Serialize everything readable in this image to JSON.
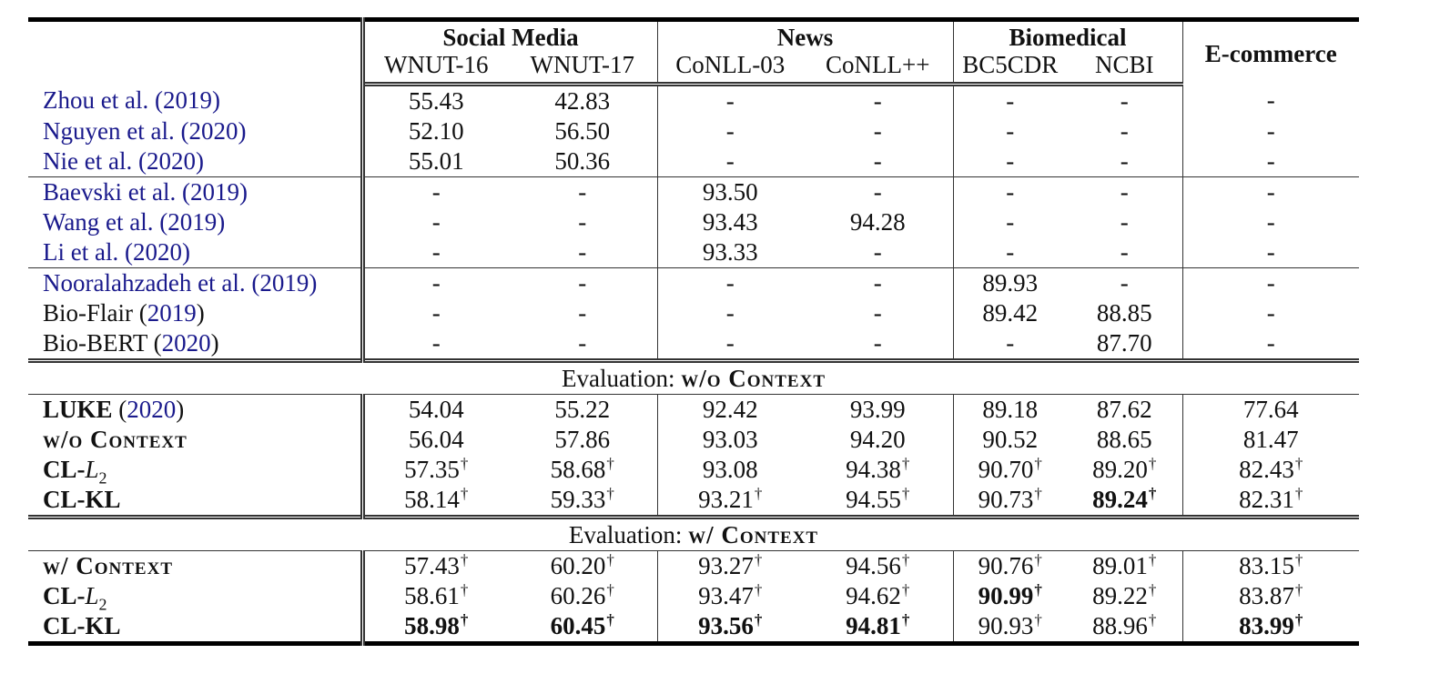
{
  "table": {
    "groups": [
      {
        "label": "Social Media",
        "columns": [
          "WNUT-16",
          "WNUT-17"
        ]
      },
      {
        "label": "News",
        "columns": [
          "CoNLL-03",
          "CoNLL++"
        ]
      },
      {
        "label": "Biomedical",
        "columns": [
          "BC5CDR",
          "NCBI"
        ]
      },
      {
        "label": "E-commerce",
        "columns": []
      }
    ],
    "baselines": [
      {
        "name": "Zhou et al.",
        "year": "2019",
        "cells": [
          "55.43",
          "42.83",
          "-",
          "-",
          "-",
          "-",
          "-"
        ]
      },
      {
        "name": "Nguyen et al.",
        "year": "2020",
        "cells": [
          "52.10",
          "56.50",
          "-",
          "-",
          "-",
          "-",
          "-"
        ]
      },
      {
        "name": "Nie et al.",
        "year": "2020",
        "cells": [
          "55.01",
          "50.36",
          "-",
          "-",
          "-",
          "-",
          "-"
        ]
      },
      {
        "name": "Baevski et al.",
        "year": "2019",
        "cells": [
          "-",
          "-",
          "93.50",
          "-",
          "-",
          "-",
          "-"
        ]
      },
      {
        "name": "Wang et al.",
        "year": "2019",
        "cells": [
          "-",
          "-",
          "93.43",
          "94.28",
          "-",
          "-",
          "-"
        ]
      },
      {
        "name": "Li et al.",
        "year": "2020",
        "cells": [
          "-",
          "-",
          "93.33",
          "-",
          "-",
          "-",
          "-"
        ]
      },
      {
        "name": "Nooralahzadeh et al.",
        "year": "2019",
        "cells": [
          "-",
          "-",
          "-",
          "-",
          "89.93",
          "-",
          "-"
        ]
      },
      {
        "name": "Bio-Flair",
        "year": "2019",
        "cells": [
          "-",
          "-",
          "-",
          "-",
          "89.42",
          "88.85",
          "-"
        ]
      },
      {
        "name": "Bio-BERT",
        "year": "2020",
        "cells": [
          "-",
          "-",
          "-",
          "-",
          "-",
          "87.70",
          "-"
        ]
      }
    ],
    "eval_wo": {
      "label_prefix": "Evaluation: ",
      "label_sc": "w/o Context",
      "rows": [
        {
          "name": "LUKE",
          "year": "2020",
          "cells": [
            "54.04",
            "55.22",
            "92.42",
            "93.99",
            "89.18",
            "87.62",
            "77.64"
          ]
        },
        {
          "name": "w/o Context",
          "cells": [
            "56.04",
            "57.86",
            "93.03",
            "94.20",
            "90.52",
            "88.65",
            "81.47"
          ]
        },
        {
          "name": "CL-",
          "math": "L",
          "math_sub": "2",
          "cells": [
            "57.35†",
            "58.68†",
            "93.08",
            "94.38†",
            "90.70†",
            "89.20†",
            "82.43†"
          ]
        },
        {
          "name": "CL-KL",
          "cells": [
            "58.14†",
            "59.33†",
            "93.21†",
            "94.55†",
            "90.73†",
            "89.24†",
            "82.31†"
          ]
        }
      ]
    },
    "eval_w": {
      "label_prefix": "Evaluation: ",
      "label_sc": "w/ Context",
      "rows": [
        {
          "name": "w/ Context",
          "cells": [
            "57.43†",
            "60.20†",
            "93.27†",
            "94.56†",
            "90.76†",
            "89.01†",
            "83.15†"
          ]
        },
        {
          "name": "CL-",
          "math": "L",
          "math_sub": "2",
          "cells": [
            "58.61†",
            "60.26†",
            "93.47†",
            "94.62†",
            "90.99†",
            "89.22†",
            "83.87†"
          ]
        },
        {
          "name": "CL-KL",
          "cells": [
            "58.98†",
            "60.45†",
            "93.56†",
            "94.81†",
            "90.93†",
            "88.96†",
            "83.99†"
          ]
        }
      ]
    },
    "bold_cells": [
      "eval_wo.3.5",
      "eval_w.1.4",
      "eval_w.2.0",
      "eval_w.2.1",
      "eval_w.2.2",
      "eval_w.2.3",
      "eval_w.2.6"
    ],
    "colors": {
      "citation_link": "#1a1a8c",
      "rule": "#000000"
    }
  }
}
